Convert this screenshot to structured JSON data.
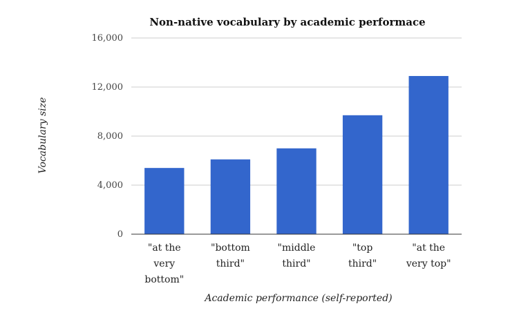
{
  "chart_data": {
    "type": "bar",
    "title": "Non-native vocabulary by academic performace",
    "xlabel": "Academic performance (self-reported)",
    "ylabel": "Vocabulary size",
    "categories": [
      [
        "\"at the",
        "very",
        "bottom\""
      ],
      [
        "\"bottom",
        "third\""
      ],
      [
        "\"middle",
        "third\""
      ],
      [
        "\"top",
        "third\""
      ],
      [
        "\"at the",
        "very top\""
      ]
    ],
    "values": [
      5400,
      6100,
      7000,
      9700,
      12900
    ],
    "ylim": [
      0,
      16000
    ],
    "yticks": [
      "0",
      "4,000",
      "8,000",
      "12,000",
      "16,000"
    ],
    "ytick_values": [
      0,
      4000,
      8000,
      12000,
      16000
    ],
    "grid": true,
    "legend": "none",
    "bar_color": "#3366cc"
  }
}
